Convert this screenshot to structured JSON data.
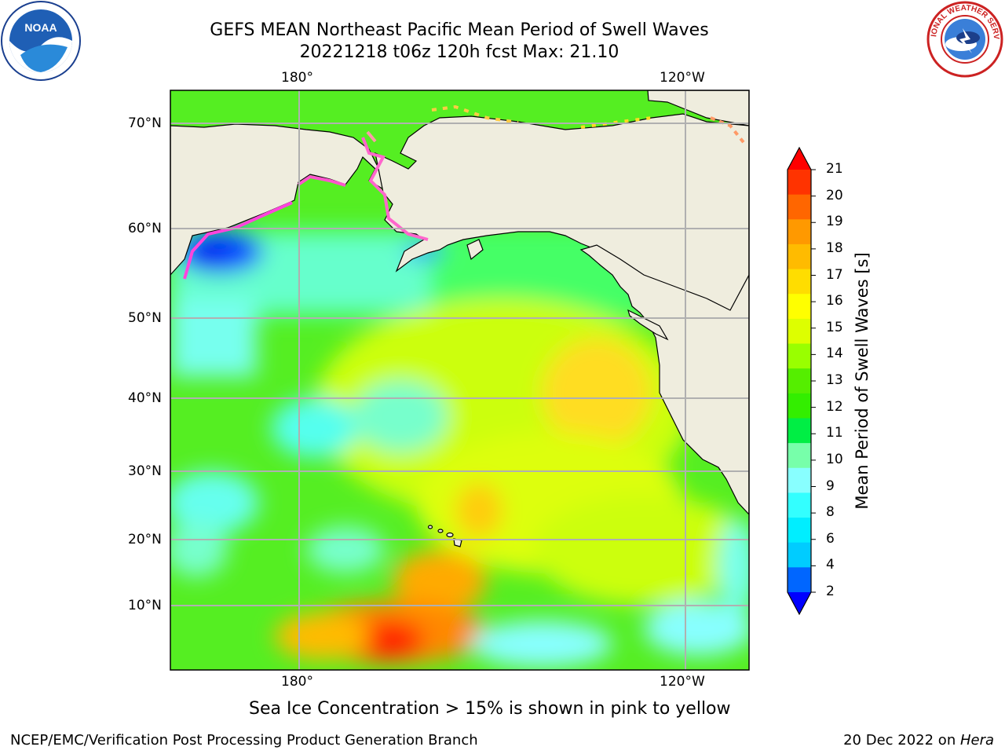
{
  "header": {
    "title_line1": "GEFS MEAN Northeast Pacific Mean Period of Swell Waves",
    "title_line2": "20221218 t06z 120h fcst   Max: 21.10"
  },
  "logos": {
    "left": "NOAA",
    "right": "NATIONAL WEATHER SERVICE"
  },
  "map": {
    "lon_ticks_top": [
      "180°",
      "120°W"
    ],
    "lon_ticks_bottom": [
      "180°",
      "120°W"
    ],
    "lat_ticks": [
      "70°N",
      "60°N",
      "50°N",
      "40°N",
      "30°N",
      "20°N",
      "10°N"
    ],
    "land_color": "#efedde",
    "grid_color": "#b0b0b0"
  },
  "colorbar": {
    "label": "Mean Period of Swell Waves [s]",
    "ticks": [
      "21",
      "20",
      "19",
      "18",
      "17",
      "16",
      "15",
      "14",
      "13",
      "12",
      "11",
      "10",
      "9",
      "8",
      "6",
      "4",
      "2"
    ],
    "colors": [
      "#ff0000",
      "#ff3300",
      "#ff6600",
      "#ff9900",
      "#ffbb00",
      "#ffdd00",
      "#ffff00",
      "#ddff00",
      "#99ff00",
      "#55ee00",
      "#33ee00",
      "#00ee44",
      "#77ffaa",
      "#88ffff",
      "#33ffff",
      "#00eeff",
      "#00ccff",
      "#0066ff",
      "#0000ff"
    ]
  },
  "annotation": "Sea Ice Concentration > 15% is shown in pink to yellow",
  "footer": {
    "left": "NCEP/EMC/Verification Post Processing Product Generation Branch",
    "right_prefix": "20 Dec 2022 on ",
    "right_host": "Hera"
  }
}
